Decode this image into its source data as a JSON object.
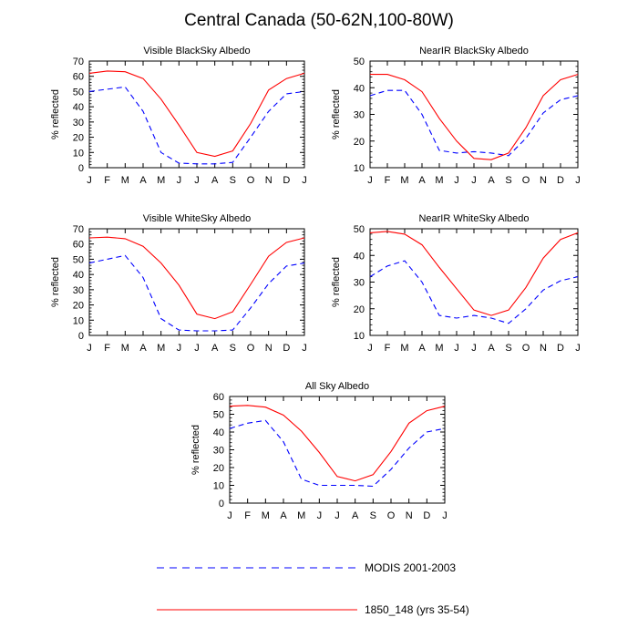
{
  "title": "Central Canada (50-62N,100-80W)",
  "legend": [
    {
      "name": "MODIS 2001-2003",
      "color": "#0000ff",
      "dash": true
    },
    {
      "name": "1850_148 (yrs 35-54)",
      "color": "#ff0000",
      "dash": false
    }
  ],
  "chart_data": [
    {
      "type": "line",
      "title": "Visible BlackSky Albedo",
      "ylabel": "% reflected",
      "x": [
        "J",
        "F",
        "M",
        "A",
        "M",
        "J",
        "J",
        "A",
        "S",
        "O",
        "N",
        "D",
        "J"
      ],
      "ylim": [
        0,
        70
      ],
      "yticks": [
        0,
        10,
        20,
        30,
        40,
        50,
        60,
        70
      ],
      "series": [
        {
          "name": "MODIS 2001-2003",
          "values": [
            50,
            51.5,
            53,
            37,
            10,
            3,
            2.5,
            2.5,
            3.5,
            20,
            37,
            48.5,
            50
          ]
        },
        {
          "name": "1850_148 (yrs 35-54)",
          "values": [
            62,
            63.5,
            63,
            58.5,
            45,
            28,
            10,
            7.5,
            11,
            29,
            51,
            58.5,
            62
          ]
        }
      ]
    },
    {
      "type": "line",
      "title": "NearIR BlackSky Albedo",
      "ylabel": "% reflected",
      "x": [
        "J",
        "F",
        "M",
        "A",
        "M",
        "J",
        "J",
        "A",
        "S",
        "O",
        "N",
        "D",
        "J"
      ],
      "ylim": [
        10,
        50
      ],
      "yticks": [
        10,
        20,
        30,
        40,
        50
      ],
      "series": [
        {
          "name": "MODIS 2001-2003",
          "values": [
            37,
            39,
            39,
            30,
            16.5,
            15.5,
            16,
            15.5,
            14.5,
            21,
            30.5,
            35.5,
            37
          ]
        },
        {
          "name": "1850_148 (yrs 35-54)",
          "values": [
            45,
            45,
            43,
            38.5,
            28.5,
            20,
            13.5,
            13,
            15.5,
            25,
            37,
            43,
            45
          ]
        }
      ]
    },
    {
      "type": "line",
      "title": "Visible WhiteSky Albedo",
      "ylabel": "% reflected",
      "x": [
        "J",
        "F",
        "M",
        "A",
        "M",
        "J",
        "J",
        "A",
        "S",
        "O",
        "N",
        "D",
        "J"
      ],
      "ylim": [
        0,
        70
      ],
      "yticks": [
        0,
        10,
        20,
        30,
        40,
        50,
        60,
        70
      ],
      "series": [
        {
          "name": "MODIS 2001-2003",
          "values": [
            47.5,
            50,
            52.5,
            38,
            11,
            3.5,
            3,
            3,
            3.5,
            18,
            34,
            45.5,
            47.5
          ]
        },
        {
          "name": "1850_148 (yrs 35-54)",
          "values": [
            64,
            64.5,
            63.5,
            58.5,
            47.5,
            33,
            14,
            11,
            15.5,
            33.5,
            52,
            61,
            64
          ]
        }
      ]
    },
    {
      "type": "line",
      "title": "NearIR WhiteSky Albedo",
      "ylabel": "% reflected",
      "x": [
        "J",
        "F",
        "M",
        "A",
        "M",
        "J",
        "J",
        "A",
        "S",
        "O",
        "N",
        "D",
        "J"
      ],
      "ylim": [
        10,
        50
      ],
      "yticks": [
        10,
        20,
        30,
        40,
        50
      ],
      "series": [
        {
          "name": "MODIS 2001-2003",
          "values": [
            32,
            36,
            38,
            30,
            17.5,
            16.5,
            17.5,
            16.5,
            14.5,
            20,
            27,
            30.5,
            32
          ]
        },
        {
          "name": "1850_148 (yrs 35-54)",
          "values": [
            48.5,
            49,
            48,
            44,
            35.5,
            27.5,
            19.5,
            17.5,
            19.5,
            28,
            39,
            46,
            48.5
          ]
        }
      ]
    },
    {
      "type": "line",
      "title": "All Sky Albedo",
      "ylabel": "% reflected",
      "x": [
        "J",
        "F",
        "M",
        "A",
        "M",
        "J",
        "J",
        "A",
        "S",
        "O",
        "N",
        "D",
        "J"
      ],
      "ylim": [
        0,
        60
      ],
      "yticks": [
        0,
        10,
        20,
        30,
        40,
        50,
        60
      ],
      "series": [
        {
          "name": "MODIS 2001-2003",
          "values": [
            42,
            45,
            46.5,
            34.5,
            13.5,
            10,
            10,
            10,
            9.5,
            19,
            31,
            40,
            42
          ]
        },
        {
          "name": "1850_148 (yrs 35-54)",
          "values": [
            54.5,
            55,
            54,
            49.5,
            40.5,
            28.5,
            15,
            12.5,
            16,
            29,
            45,
            52,
            54.5
          ]
        }
      ]
    }
  ]
}
